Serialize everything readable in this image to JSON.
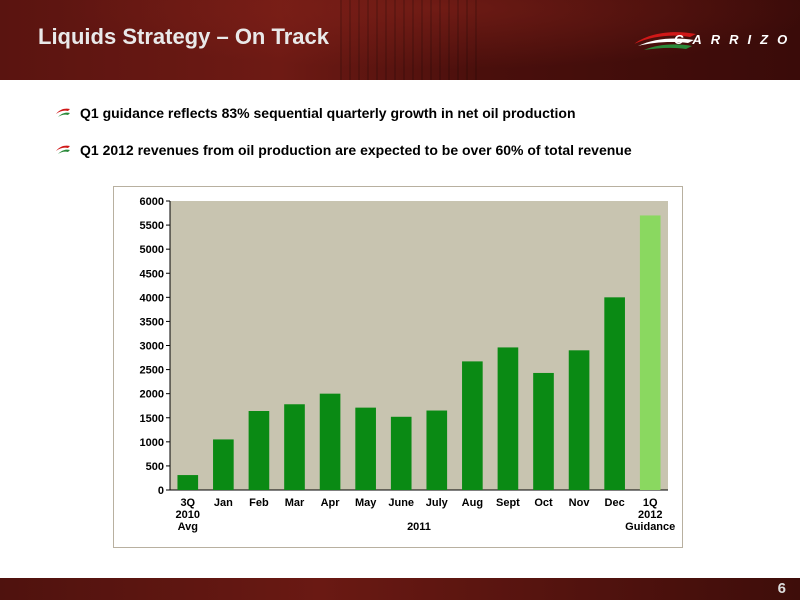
{
  "header": {
    "title": "Liquids Strategy – On Track",
    "logo_text": "CARRIZO",
    "logo_icon": "carrizo-swoosh-logo"
  },
  "bullets": [
    {
      "icon": "swoosh-bullet-icon",
      "text": "Q1 guidance reflects 83% sequential quarterly growth in net oil production"
    },
    {
      "icon": "swoosh-bullet-icon",
      "text": "Q1 2012 revenues from oil production are expected to be over 60% of total revenue"
    }
  ],
  "colors": {
    "header_bg": "#5a1410",
    "chart_bg": "#c8c4b0",
    "bar_dark_green": "#0a8a14",
    "bar_light_green": "#8ad860",
    "logo_red": "#d01818",
    "logo_green": "#2a8a3a"
  },
  "chart_data": {
    "type": "bar",
    "title": "",
    "xlabel": "",
    "ylabel": "",
    "ylim": [
      0,
      6000
    ],
    "yticks": [
      0,
      500,
      1000,
      1500,
      2000,
      2500,
      3000,
      3500,
      4000,
      4500,
      5000,
      5500,
      6000
    ],
    "grid": false,
    "categories": [
      [
        "3Q",
        "2010",
        "Avg"
      ],
      [
        "Jan"
      ],
      [
        "Feb"
      ],
      [
        "Mar"
      ],
      [
        "Apr"
      ],
      [
        "May"
      ],
      [
        "June"
      ],
      [
        "July"
      ],
      [
        "Aug"
      ],
      [
        "Sept"
      ],
      [
        "Oct"
      ],
      [
        "Nov"
      ],
      [
        "Dec"
      ],
      [
        "1Q",
        "2012",
        "Guidance"
      ]
    ],
    "values": [
      310,
      1050,
      1640,
      1780,
      2000,
      1710,
      1520,
      1650,
      2670,
      2960,
      2430,
      2900,
      4000,
      5700
    ],
    "highlight_last": true,
    "group_label": "2011"
  },
  "footer": {
    "page_number": "6"
  }
}
